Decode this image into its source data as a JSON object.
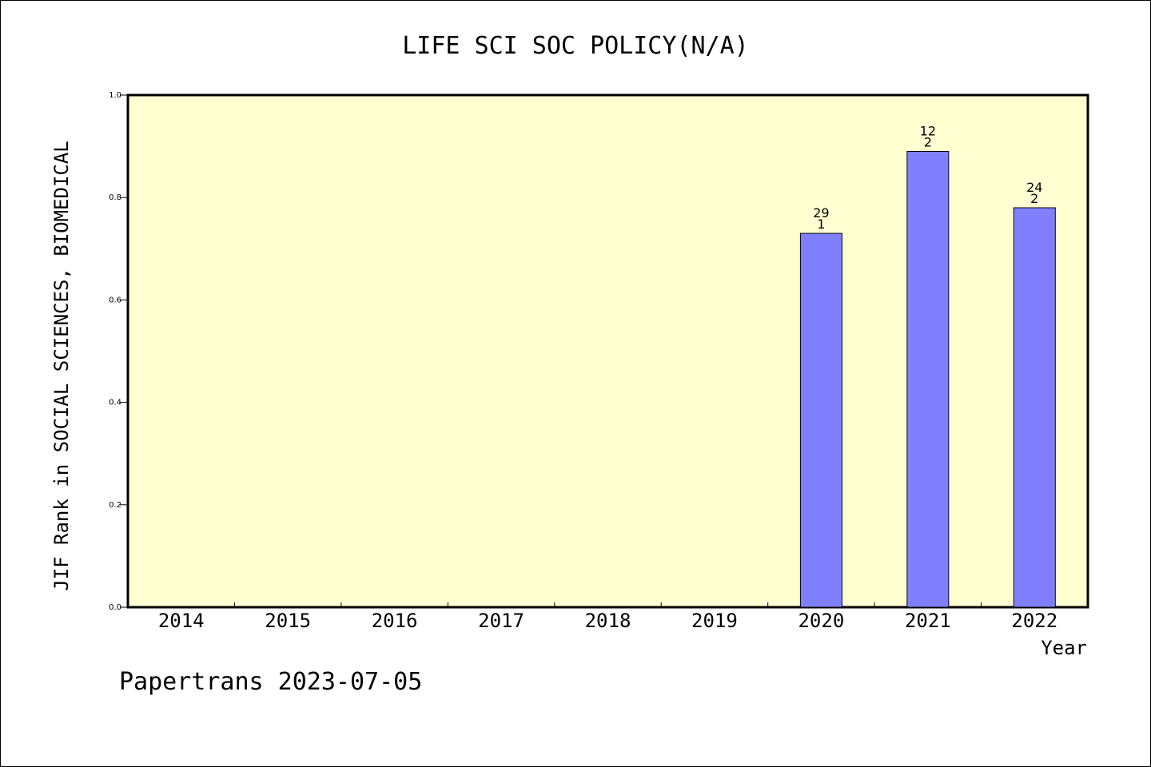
{
  "chart_data": {
    "type": "bar",
    "title": "LIFE SCI SOC POLICY(N/A)",
    "xlabel": "Year",
    "ylabel": "JIF Rank in SOCIAL SCIENCES, BIOMEDICAL",
    "categories": [
      "2014",
      "2015",
      "2016",
      "2017",
      "2018",
      "2019",
      "2020",
      "2021",
      "2022"
    ],
    "values": [
      null,
      null,
      null,
      null,
      null,
      null,
      0.73,
      0.89,
      0.78
    ],
    "bar_labels": [
      null,
      null,
      null,
      null,
      null,
      null,
      {
        "top": "29",
        "bottom": "1"
      },
      {
        "top": "12",
        "bottom": "2"
      },
      {
        "top": "24",
        "bottom": "2"
      }
    ],
    "ylim": [
      0,
      1.0
    ],
    "yticks": [
      "0.0",
      "0.2",
      "0.4",
      "0.6",
      "0.8",
      "1.0"
    ],
    "ytick_values": [
      0,
      0.2,
      0.4,
      0.6,
      0.8,
      1.0
    ],
    "grid": false,
    "legend": "none",
    "colors": {
      "plot_background": "#ffffd2",
      "bar_fill": "#8080ff",
      "bar_stroke": "#000000",
      "axis": "#000000"
    }
  },
  "footer": "Papertrans 2023-07-05"
}
